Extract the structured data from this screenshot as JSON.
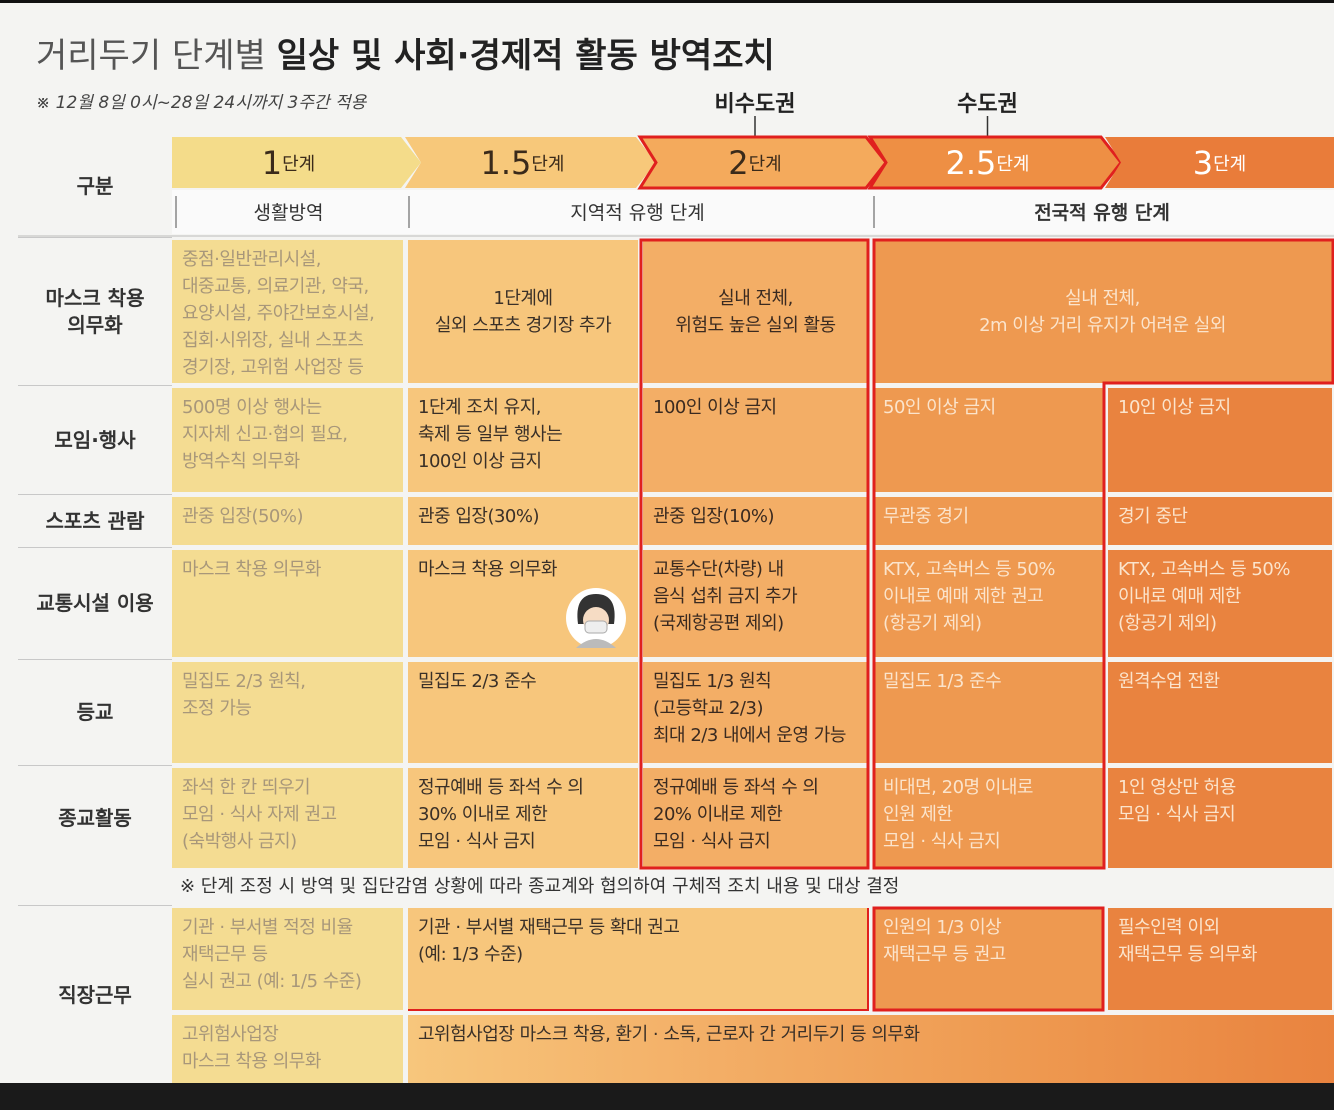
{
  "title": {
    "light": "거리두기 단계별",
    "bold": "일상 및 사회·경제적 활동 방역조치"
  },
  "subtitle": "※ 12월 8일 0시~28일 24시까지 3주간 적용",
  "regions": [
    "비수도권",
    "수도권"
  ],
  "header_label": "구분",
  "stages": [
    {
      "number": "1",
      "unit": "단계"
    },
    {
      "number": "1.5",
      "unit": "단계"
    },
    {
      "number": "2",
      "unit": "단계"
    },
    {
      "number": "2.5",
      "unit": "단계"
    },
    {
      "number": "3",
      "unit": "단계"
    }
  ],
  "phases": [
    "생활방역",
    "지역적 유행 단계",
    "전국적 유행 단계"
  ],
  "rows": [
    {
      "label": "마스크 착용\n의무화",
      "cells": [
        "중점·일반관리시설,\n대중교통, 의료기관, 약국,\n요양시설, 주야간보호시설,\n집회·시위장, 실내 스포츠\n경기장, 고위험 사업장 등",
        "1단계에\n실외 스포츠 경기장 추가",
        "실내 전체,\n위험도 높은 실외 활동",
        "실내 전체,\n2m 이상 거리 유지가 어려운 실외"
      ]
    },
    {
      "label": "모임·행사",
      "cells": [
        "500명 이상 행사는\n지자체 신고·협의 필요,\n방역수칙 의무화",
        "1단계 조치 유지,\n축제 등 일부 행사는\n100인 이상 금지",
        "100인 이상 금지",
        "50인 이상 금지",
        "10인 이상 금지"
      ]
    },
    {
      "label": "스포츠 관람",
      "cells": [
        "관중 입장(50%)",
        "관중 입장(30%)",
        "관중 입장(10%)",
        "무관중 경기",
        "경기 중단"
      ]
    },
    {
      "label": "교통시설 이용",
      "cells": [
        "마스크 착용 의무화",
        "마스크 착용 의무화",
        "교통수단(차량) 내\n음식 섭취 금지 추가\n(국제항공편 제외)",
        "KTX, 고속버스 등 50%\n이내로 예매 제한 권고\n(항공기 제외)",
        "KTX, 고속버스 등 50%\n이내로 예매 제한\n(항공기 제외)"
      ]
    },
    {
      "label": "등교",
      "cells": [
        "밀집도 2/3 원칙,\n조정 가능",
        "밀집도 2/3 준수",
        "밀집도 1/3 원칙\n(고등학교 2/3)\n최대 2/3 내에서 운영 가능",
        "밀집도 1/3 준수",
        "원격수업 전환"
      ]
    },
    {
      "label": "종교활동",
      "cells": [
        "좌석 한 칸 띄우기\n모임 · 식사 자제 권고\n(숙박행사 금지)",
        "정규예배 등 좌석 수 의\n30% 이내로 제한\n모임 · 식사 금지",
        "정규예배 등 좌석 수 의\n20% 이내로 제한\n모임 · 식사 금지",
        "비대면, 20명 이내로\n인원 제한\n모임 · 식사 금지",
        "1인 영상만 허용\n모임 · 식사 금지"
      ]
    },
    {
      "label": "직장근무",
      "cells": [
        "기관 · 부서별 적정 비율\n재택근무 등\n실시 권고 (예: 1/5 수준)",
        "기관 · 부서별 재택근무 등 확대 권고\n(예: 1/3 수준)",
        "인원의 1/3 이상\n재택근무 등 권고",
        "필수인력 이외\n재택근무 등 의무화"
      ]
    },
    {
      "cells": [
        "고위험사업장\n마스크 착용 의무화",
        "고위험사업장 마스크 착용, 환기 · 소독, 근로자 간 거리두기 등 의무화"
      ]
    }
  ],
  "note": "※ 단계 조정 시 방역 및 집단감염 상황에 따라 종교계와 협의하여 구체적 조치 내용 및 대상 결정"
}
